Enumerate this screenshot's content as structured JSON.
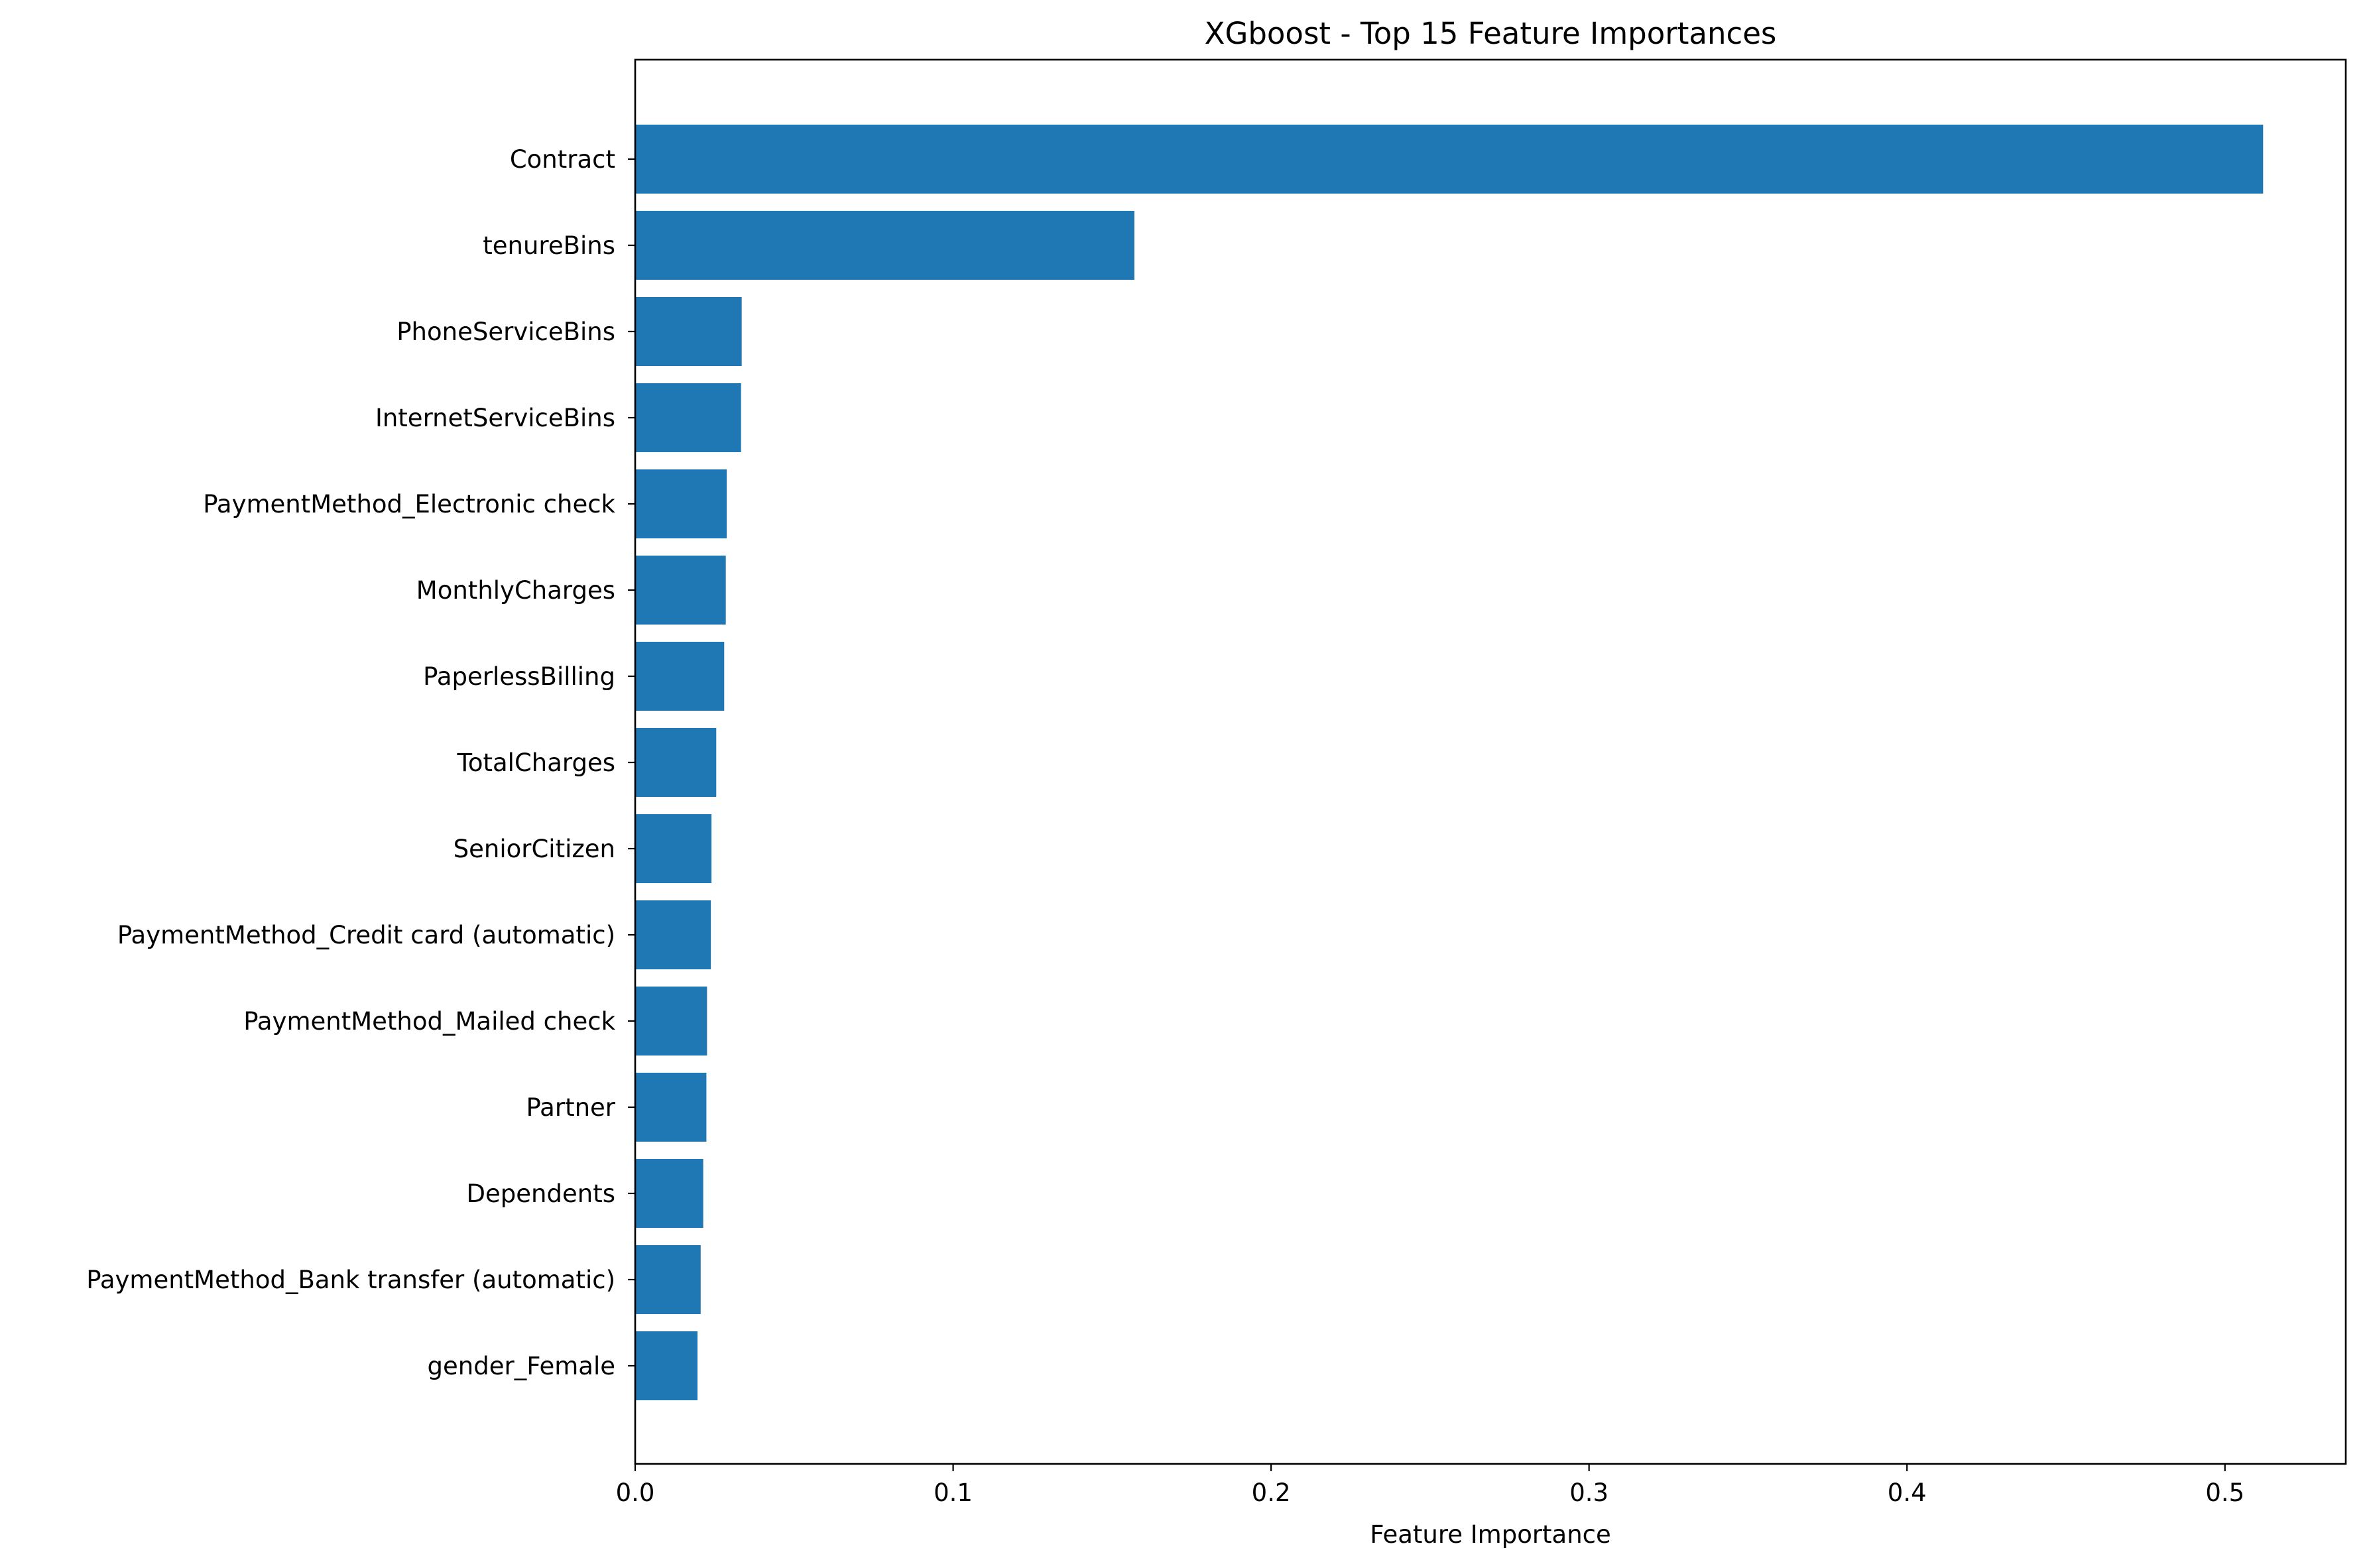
{
  "chart_data": {
    "type": "bar",
    "orientation": "horizontal",
    "title": "XGboost - Top 15 Feature Importances",
    "xlabel": "Feature Importance",
    "ylabel": "",
    "xlim": [
      0,
      0.538
    ],
    "xticks": [
      0.0,
      0.1,
      0.2,
      0.3,
      0.4,
      0.5
    ],
    "xtick_labels": [
      "0.0",
      "0.1",
      "0.2",
      "0.3",
      "0.4",
      "0.5"
    ],
    "grid": false,
    "bar_color": "#1f77b4",
    "categories": [
      "Contract",
      "tenureBins",
      "PhoneServiceBins",
      "InternetServiceBins",
      "PaymentMethod_Electronic check",
      "MonthlyCharges",
      "PaperlessBilling",
      "TotalCharges",
      "SeniorCitizen",
      "PaymentMethod_Credit card (automatic)",
      "PaymentMethod_Mailed check",
      "Partner",
      "Dependents",
      "PaymentMethod_Bank transfer (automatic)",
      "gender_Female"
    ],
    "values": [
      0.512,
      0.157,
      0.0335,
      0.0333,
      0.0288,
      0.0285,
      0.028,
      0.0255,
      0.024,
      0.0238,
      0.0226,
      0.0224,
      0.0214,
      0.0206,
      0.0196
    ]
  }
}
